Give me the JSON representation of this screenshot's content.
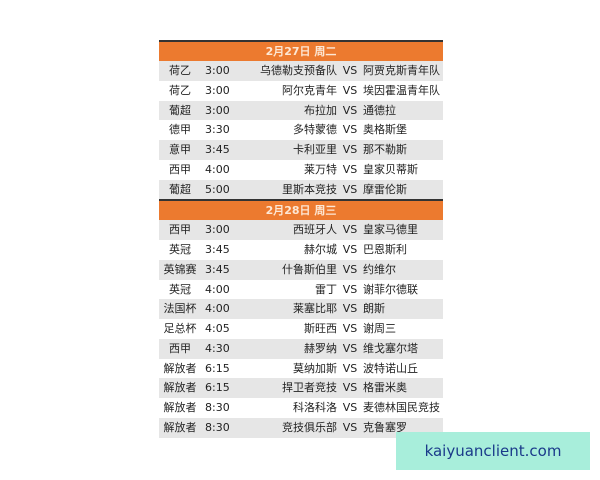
{
  "sections": [
    {
      "title": "2月27日 周二",
      "matches": [
        {
          "league": "荷乙",
          "time": "3:00",
          "home": "乌德勒支预备队",
          "vs": "VS",
          "away": "阿贾克斯青年队"
        },
        {
          "league": "荷乙",
          "time": "3:00",
          "home": "阿尔克青年",
          "vs": "VS",
          "away": "埃因霍温青年队"
        },
        {
          "league": "葡超",
          "time": "3:00",
          "home": "布拉加",
          "vs": "VS",
          "away": "通德拉"
        },
        {
          "league": "德甲",
          "time": "3:30",
          "home": "多特蒙德",
          "vs": "VS",
          "away": "奥格斯堡"
        },
        {
          "league": "意甲",
          "time": "3:45",
          "home": "卡利亚里",
          "vs": "VS",
          "away": "那不勒斯"
        },
        {
          "league": "西甲",
          "time": "4:00",
          "home": "莱万特",
          "vs": "VS",
          "away": "皇家贝蒂斯"
        },
        {
          "league": "葡超",
          "time": "5:00",
          "home": "里斯本竞技",
          "vs": "VS",
          "away": "摩雷伦斯"
        }
      ]
    },
    {
      "title": "2月28日 周三",
      "matches": [
        {
          "league": "西甲",
          "time": "3:00",
          "home": "西班牙人",
          "vs": "VS",
          "away": "皇家马德里"
        },
        {
          "league": "英冠",
          "time": "3:45",
          "home": "赫尔城",
          "vs": "VS",
          "away": "巴恩斯利"
        },
        {
          "league": "英锦赛",
          "time": "3:45",
          "home": "什鲁斯伯里",
          "vs": "VS",
          "away": "约维尔"
        },
        {
          "league": "英冠",
          "time": "4:00",
          "home": "雷丁",
          "vs": "VS",
          "away": "谢菲尔德联"
        },
        {
          "league": "法国杯",
          "time": "4:00",
          "home": "莱塞比耶",
          "vs": "VS",
          "away": "朗斯"
        },
        {
          "league": "足总杯",
          "time": "4:05",
          "home": "斯旺西",
          "vs": "VS",
          "away": "谢周三"
        },
        {
          "league": "西甲",
          "time": "4:30",
          "home": "赫罗纳",
          "vs": "VS",
          "away": "维戈塞尔塔"
        },
        {
          "league": "解放者",
          "time": "6:15",
          "home": "莫纳加斯",
          "vs": "VS",
          "away": "波特诺山丘"
        },
        {
          "league": "解放者",
          "time": "6:15",
          "home": "捍卫者竞技",
          "vs": "VS",
          "away": "格雷米奥"
        },
        {
          "league": "解放者",
          "time": "8:30",
          "home": "科洛科洛",
          "vs": "VS",
          "away": "麦德林国民竞技"
        },
        {
          "league": "解放者",
          "time": "8:30",
          "home": "竞技俱乐部",
          "vs": "VS",
          "away": "克鲁塞罗"
        }
      ]
    }
  ],
  "watermark": "kaiyuanclient.com",
  "colors": {
    "header": "#ec7a2f",
    "alt_row": "#e6e6e6",
    "watermark_bg": "#a8eedb"
  }
}
